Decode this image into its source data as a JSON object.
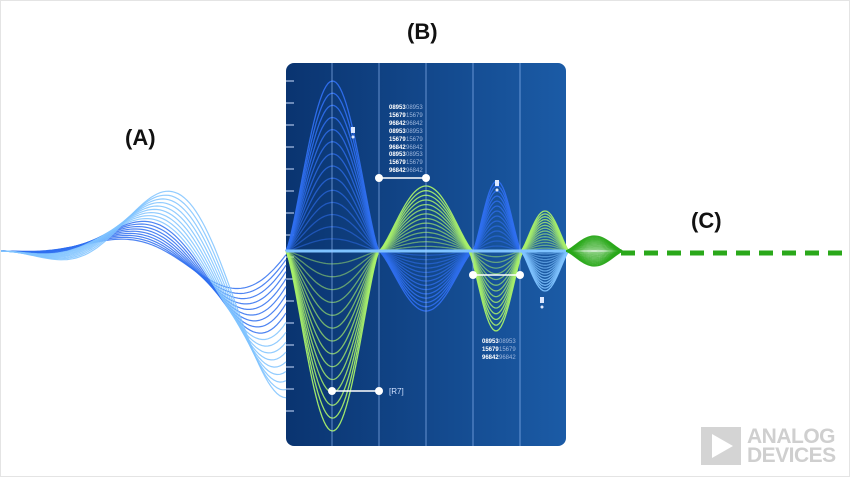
{
  "labels": {
    "a": "(A)",
    "b": "(B)",
    "c": "(C)"
  },
  "panel": {
    "readouts": [
      {
        "rows": [
          [
            "08953",
            "08953"
          ],
          [
            "15679",
            "15679"
          ],
          [
            "96842",
            "96842"
          ]
        ]
      },
      {
        "rows": [
          [
            "08953",
            "08953"
          ],
          [
            "15679",
            "15679"
          ],
          [
            "96842",
            "96842"
          ]
        ]
      },
      {
        "rows": [
          [
            "08953",
            "08953"
          ],
          [
            "15679",
            "15679"
          ],
          [
            "96842",
            "96842"
          ]
        ]
      },
      {
        "rows": [
          [
            "08953",
            "08953"
          ],
          [
            "15679",
            "15679"
          ],
          [
            "96842",
            "96842"
          ]
        ]
      }
    ],
    "marker_label": "[R7]"
  },
  "logo": {
    "line1": "ANALOG",
    "line2": "DEVICES"
  },
  "colors": {
    "blue": "#2f6ff0",
    "light_blue": "#7fc3ff",
    "green": "#a8f06a",
    "dark_green": "#2aa81a",
    "panel": "#0b3a78",
    "panel_light": "#1a5aa3"
  }
}
